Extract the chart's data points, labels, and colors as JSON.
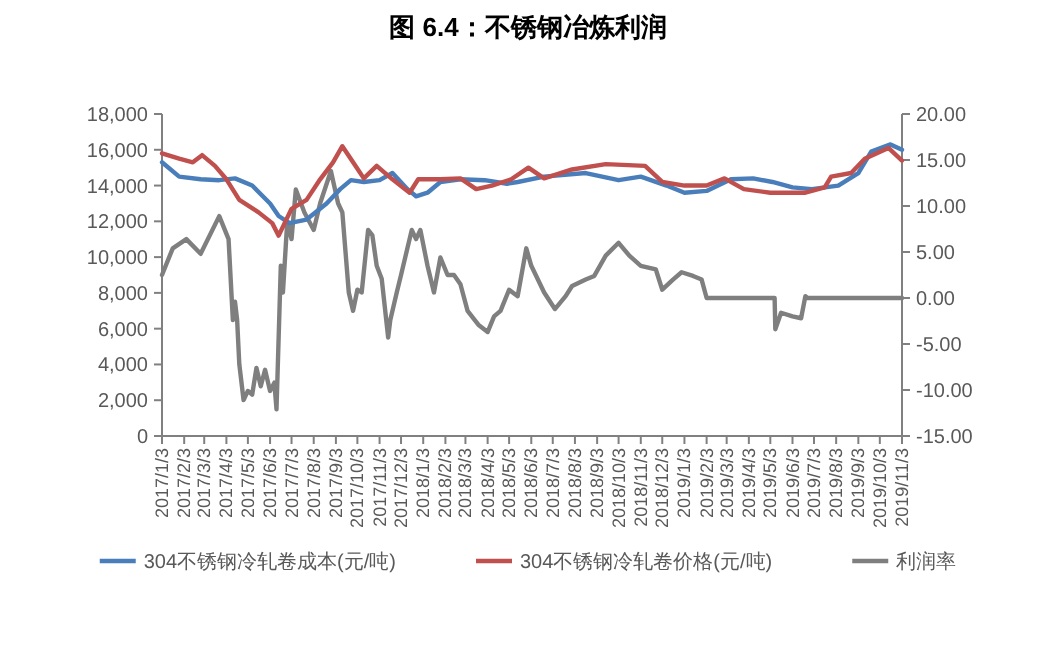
{
  "chart_data": {
    "type": "line",
    "title": "图 6.4：不锈钢冶炼利润",
    "legend": "bottom",
    "grid": false,
    "xlim": [
      "2017-01-03",
      "2019-11-03"
    ],
    "xticks": [
      {
        "value": "2017-01-03",
        "label": "2017/1/3"
      },
      {
        "value": "2017-02-03",
        "label": "2017/2/3"
      },
      {
        "value": "2017-03-03",
        "label": "2017/3/3"
      },
      {
        "value": "2017-04-03",
        "label": "2017/4/3"
      },
      {
        "value": "2017-05-03",
        "label": "2017/5/3"
      },
      {
        "value": "2017-06-03",
        "label": "2017/6/3"
      },
      {
        "value": "2017-07-03",
        "label": "2017/7/3"
      },
      {
        "value": "2017-08-03",
        "label": "2017/8/3"
      },
      {
        "value": "2017-09-03",
        "label": "2017/9/3"
      },
      {
        "value": "2017-10-03",
        "label": "2017/10/3"
      },
      {
        "value": "2017-11-03",
        "label": "2017/11/3"
      },
      {
        "value": "2017-12-03",
        "label": "2017/12/3"
      },
      {
        "value": "2018-01-03",
        "label": "2018/1/3"
      },
      {
        "value": "2018-02-03",
        "label": "2018/2/3"
      },
      {
        "value": "2018-03-03",
        "label": "2018/3/3"
      },
      {
        "value": "2018-04-03",
        "label": "2018/4/3"
      },
      {
        "value": "2018-05-03",
        "label": "2018/5/3"
      },
      {
        "value": "2018-06-03",
        "label": "2018/6/3"
      },
      {
        "value": "2018-07-03",
        "label": "2018/7/3"
      },
      {
        "value": "2018-08-03",
        "label": "2018/8/3"
      },
      {
        "value": "2018-09-03",
        "label": "2018/9/3"
      },
      {
        "value": "2018-10-03",
        "label": "2018/10/3"
      },
      {
        "value": "2018-11-03",
        "label": "2018/11/3"
      },
      {
        "value": "2018-12-03",
        "label": "2018/12/3"
      },
      {
        "value": "2019-01-03",
        "label": "2019/1/3"
      },
      {
        "value": "2019-02-03",
        "label": "2019/2/3"
      },
      {
        "value": "2019-03-03",
        "label": "2019/3/3"
      },
      {
        "value": "2019-04-03",
        "label": "2019/4/3"
      },
      {
        "value": "2019-05-03",
        "label": "2019/5/3"
      },
      {
        "value": "2019-06-03",
        "label": "2019/6/3"
      },
      {
        "value": "2019-07-03",
        "label": "2019/7/3"
      },
      {
        "value": "2019-08-03",
        "label": "2019/8/3"
      },
      {
        "value": "2019-09-03",
        "label": "2019/9/3"
      },
      {
        "value": "2019-10-03",
        "label": "2019/10/3"
      },
      {
        "value": "2019-11-03",
        "label": "2019/11/3"
      }
    ],
    "ylim": [
      0,
      18000
    ],
    "yticks": [
      {
        "value": 0,
        "label": "0"
      },
      {
        "value": 2000,
        "label": "2,000"
      },
      {
        "value": 4000,
        "label": "4,000"
      },
      {
        "value": 6000,
        "label": "6,000"
      },
      {
        "value": 8000,
        "label": "8,000"
      },
      {
        "value": 10000,
        "label": "10,000"
      },
      {
        "value": 12000,
        "label": "12,000"
      },
      {
        "value": 14000,
        "label": "14,000"
      },
      {
        "value": 16000,
        "label": "16,000"
      },
      {
        "value": 18000,
        "label": "18,000"
      }
    ],
    "y2lim": [
      -15,
      20
    ],
    "y2ticks": [
      {
        "value": -15,
        "label": "-15.00"
      },
      {
        "value": -10,
        "label": "-10.00"
      },
      {
        "value": -5,
        "label": "-5.00"
      },
      {
        "value": 0,
        "label": "0.00"
      },
      {
        "value": 5,
        "label": "5.00"
      },
      {
        "value": 10,
        "label": "10.00"
      },
      {
        "value": 15,
        "label": "15.00"
      },
      {
        "value": 20,
        "label": "20.00"
      }
    ],
    "series": [
      {
        "name": "304不锈钢冷轧卷成本(元/吨)",
        "color": "#4a7ebb",
        "x": [
          "2017-01-03",
          "2017-01-27",
          "2017-02-26",
          "2017-03-24",
          "2017-04-15",
          "2017-05-09",
          "2017-06-03",
          "2017-06-15",
          "2017-06-30",
          "2017-07-24",
          "2017-08-21",
          "2017-09-09",
          "2017-09-24",
          "2017-10-12",
          "2017-11-03",
          "2017-11-21",
          "2017-12-12",
          "2017-12-24",
          "2018-01-09",
          "2018-01-27",
          "2018-02-24",
          "2018-03-30",
          "2018-04-30",
          "2018-05-15",
          "2018-06-21",
          "2018-08-18",
          "2018-10-03",
          "2018-11-03",
          "2018-12-09",
          "2019-01-03",
          "2019-02-03",
          "2019-03-09",
          "2019-04-09",
          "2019-05-06",
          "2019-06-03",
          "2019-06-30",
          "2019-08-06",
          "2019-09-03",
          "2019-09-21",
          "2019-10-18",
          "2019-11-03"
        ],
        "values": [
          15300,
          14500,
          14350,
          14300,
          14400,
          14000,
          13000,
          12300,
          11900,
          12100,
          13000,
          13800,
          14300,
          14200,
          14300,
          14700,
          13800,
          13400,
          13600,
          14200,
          14350,
          14300,
          14100,
          14200,
          14500,
          14700,
          14300,
          14500,
          14000,
          13600,
          13700,
          14350,
          14400,
          14200,
          13900,
          13800,
          14000,
          14700,
          15900,
          16300,
          16000
        ]
      },
      {
        "name": "304不锈钢冷轧卷价格(元/吨)",
        "color": "#c0504d",
        "x": [
          "2017-01-03",
          "2017-01-27",
          "2017-02-15",
          "2017-02-28",
          "2017-03-18",
          "2017-04-03",
          "2017-04-21",
          "2017-05-18",
          "2017-06-06",
          "2017-06-15",
          "2017-07-03",
          "2017-07-24",
          "2017-08-12",
          "2017-08-30",
          "2017-09-12",
          "2017-09-27",
          "2017-10-12",
          "2017-10-30",
          "2017-11-21",
          "2017-12-15",
          "2017-12-27",
          "2018-01-27",
          "2018-02-24",
          "2018-03-18",
          "2018-04-09",
          "2018-05-06",
          "2018-05-30",
          "2018-06-21",
          "2018-07-30",
          "2018-09-15",
          "2018-11-09",
          "2018-12-03",
          "2019-01-03",
          "2019-02-03",
          "2019-02-28",
          "2019-03-27",
          "2019-05-03",
          "2019-06-21",
          "2019-07-18",
          "2019-07-27",
          "2019-08-24",
          "2019-09-12",
          "2019-10-15",
          "2019-11-03"
        ],
        "values": [
          15800,
          15500,
          15300,
          15700,
          15100,
          14350,
          13200,
          12500,
          11900,
          11200,
          12700,
          13200,
          14350,
          15300,
          16200,
          15300,
          14400,
          15100,
          14350,
          13600,
          14350,
          14350,
          14400,
          13800,
          14000,
          14350,
          15000,
          14400,
          14900,
          15200,
          15100,
          14200,
          14000,
          14000,
          14400,
          13800,
          13600,
          13600,
          13900,
          14500,
          14700,
          15500,
          16100,
          15400
        ]
      },
      {
        "name": "利润率",
        "color": "#7f7f7f",
        "axis": "y2",
        "x": [
          "2017-01-03",
          "2017-01-18",
          "2017-02-06",
          "2017-02-26",
          "2017-03-24",
          "2017-04-06",
          "2017-04-12",
          "2017-04-15",
          "2017-04-18",
          "2017-04-21",
          "2017-04-27",
          "2017-05-03",
          "2017-05-09",
          "2017-05-15",
          "2017-05-21",
          "2017-05-27",
          "2017-06-03",
          "2017-06-09",
          "2017-06-12",
          "2017-06-18",
          "2017-06-21",
          "2017-06-27",
          "2017-07-03",
          "2017-07-09",
          "2017-07-21",
          "2017-08-03",
          "2017-08-12",
          "2017-08-27",
          "2017-09-06",
          "2017-09-12",
          "2017-09-21",
          "2017-09-27",
          "2017-10-03",
          "2017-10-09",
          "2017-10-18",
          "2017-10-24",
          "2017-10-30",
          "2017-11-06",
          "2017-11-15",
          "2017-11-18",
          "2017-11-27",
          "2017-12-03",
          "2017-12-18",
          "2017-12-24",
          "2017-12-30",
          "2018-01-09",
          "2018-01-18",
          "2018-01-27",
          "2018-02-06",
          "2018-02-15",
          "2018-02-24",
          "2018-03-06",
          "2018-03-21",
          "2018-04-03",
          "2018-04-12",
          "2018-04-21",
          "2018-05-03",
          "2018-05-15",
          "2018-05-27",
          "2018-06-03",
          "2018-06-21",
          "2018-07-06",
          "2018-07-21",
          "2018-07-30",
          "2018-08-18",
          "2018-08-30",
          "2018-09-15",
          "2018-10-03",
          "2018-10-18",
          "2018-11-03",
          "2018-11-24",
          "2018-12-03",
          "2018-12-18",
          "2018-12-30",
          "2019-01-15",
          "2019-01-27",
          "2019-02-03",
          "2019-05-09",
          "2019-05-10",
          "2019-05-18",
          "2019-06-03",
          "2019-06-15",
          "2019-06-21",
          "2019-06-24",
          "2019-11-03"
        ],
        "values": [
          2.5,
          5.4,
          6.4,
          4.8,
          8.9,
          6.4,
          -2.4,
          -0.4,
          -2.4,
          -7.2,
          -11.1,
          -10.1,
          -10.5,
          -7.6,
          -9.6,
          -7.8,
          -10.1,
          -9.2,
          -12.1,
          3.5,
          0.6,
          8.3,
          6.4,
          11.8,
          9.3,
          7.4,
          10.3,
          13.8,
          10.3,
          9.3,
          0.6,
          -1.4,
          0.9,
          0.6,
          7.4,
          6.8,
          3.5,
          2.1,
          -4.3,
          -2.4,
          0.6,
          2.5,
          7.4,
          6.4,
          7.4,
          3.5,
          0.6,
          4.4,
          2.5,
          2.5,
          1.5,
          -1.4,
          -2.9,
          -3.7,
          -2.0,
          -1.4,
          0.9,
          0.2,
          5.4,
          3.5,
          0.6,
          -1.2,
          0.2,
          1.3,
          2.0,
          2.4,
          4.6,
          6.0,
          4.6,
          3.5,
          3.1,
          0.9,
          2.0,
          2.8,
          2.4,
          2.0,
          0,
          0,
          -3.4,
          -1.6,
          -2.0,
          -2.2,
          0.2,
          0,
          0
        ]
      }
    ]
  }
}
